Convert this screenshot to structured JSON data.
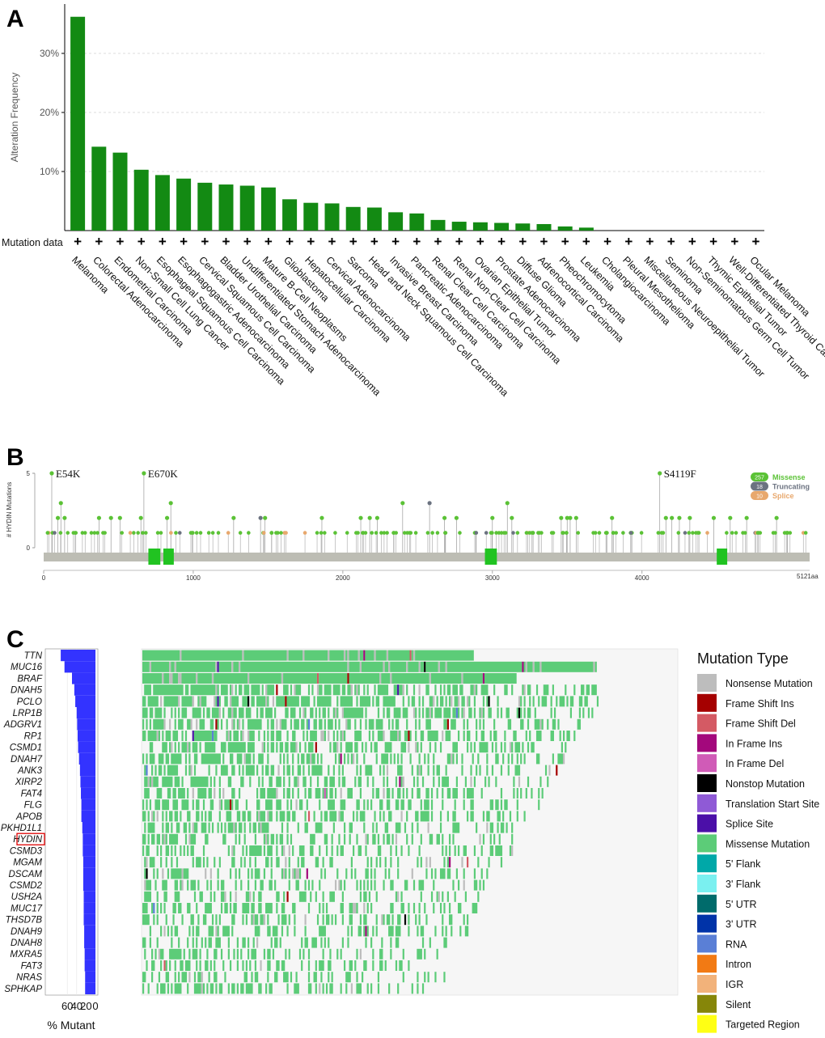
{
  "panels": {
    "a": "A",
    "b": "B",
    "c": "C"
  },
  "chart_data": [
    {
      "type": "bar",
      "panel": "A",
      "title": "",
      "xlabel": "",
      "ylabel": "Alteration Frequency",
      "ylim": [
        0,
        38
      ],
      "yticks": [
        10,
        20,
        30
      ],
      "ytick_labels": [
        "10%",
        "20%",
        "30%"
      ],
      "row_label": "Mutation data",
      "row_symbol": "+",
      "bar_color": "#138a13",
      "categories": [
        "Melanoma",
        "Colorectal Adenocarcinoma",
        "Endometrial Carcinoma",
        "Non-Small Cell Lung Cancer",
        "Esophageal Squamous Cell Carcinoma",
        "Esophagogastric Adenocarcinoma",
        "Cervical Squamous Cell Carcinoma",
        "Bladder Urothelial Carcinoma",
        "Undifferentiated Stomach Adenocarcinoma",
        "Mature B-Cell Neoplasms",
        "Glioblastoma",
        "Hepatocellular Carcinoma",
        "Cervical Adenocarcinoma",
        "Sarcoma",
        "Head and Neck Squamous Cell Carcinoma",
        "Invasive Breast Carcinoma",
        "Pancreatic Adenocarcinoma",
        "Renal Clear Cell Carcinoma",
        "Renal Non-Clear Cell Carcinoma",
        "Ovarian Epithelial Tumor",
        "Prostate Adenocarcinoma",
        "Diffuse Glioma",
        "Adrenocortical Carcinoma",
        "Pheochromocytoma",
        "Leukemia",
        "Cholangiocarcinoma",
        "Pleural Mesothelioma",
        "Miscellaneous Neuroepithelial Tumor",
        "Seminoma",
        "Non-Seminomatous Germ Cell Tumor",
        "Thymic Epithelial Tumor",
        "Well-Differentiated Thyroid Cancer",
        "Ocular Melanoma"
      ],
      "values": [
        36.2,
        14.2,
        13.2,
        10.3,
        9.4,
        8.8,
        8.1,
        7.8,
        7.6,
        7.3,
        5.3,
        4.7,
        4.6,
        4.0,
        3.9,
        3.1,
        2.9,
        1.8,
        1.5,
        1.4,
        1.3,
        1.2,
        1.1,
        0.7,
        0.5,
        0,
        0,
        0,
        0,
        0,
        0,
        0,
        0
      ]
    },
    {
      "type": "scatter",
      "panel": "B",
      "subtype": "lollipop",
      "ylabel": "# HYDIN Mutations",
      "ylim": [
        0,
        5
      ],
      "yticks": [
        0,
        5
      ],
      "xlim": [
        0,
        5121
      ],
      "xticks": [
        0,
        1000,
        2000,
        3000,
        4000
      ],
      "x_end_label": "5121aa",
      "annotations": [
        {
          "label": "E54K",
          "x": 54,
          "y": 5
        },
        {
          "label": "E670K",
          "x": 670,
          "y": 5
        },
        {
          "label": "S4119F",
          "x": 4119,
          "y": 5
        }
      ],
      "domains": [
        [
          700,
          780
        ],
        [
          800,
          870
        ],
        [
          2950,
          3030
        ],
        [
          4500,
          4570
        ]
      ],
      "legend": [
        {
          "name": "Missense",
          "count": "257",
          "color": "#5bc236"
        },
        {
          "name": "Truncating",
          "count": "18",
          "color": "#6b7280"
        },
        {
          "name": "Splice",
          "count": "10",
          "color": "#e8a86d"
        }
      ],
      "points": [
        {
          "x": 54,
          "y": 5,
          "t": "m"
        },
        {
          "x": 95,
          "y": 2,
          "t": "m"
        },
        {
          "x": 115,
          "y": 3,
          "t": "m"
        },
        {
          "x": 140,
          "y": 2,
          "t": "m"
        },
        {
          "x": 370,
          "y": 2,
          "t": "m"
        },
        {
          "x": 450,
          "y": 2,
          "t": "m"
        },
        {
          "x": 510,
          "y": 2,
          "t": "m"
        },
        {
          "x": 650,
          "y": 2,
          "t": "m"
        },
        {
          "x": 670,
          "y": 5,
          "t": "m"
        },
        {
          "x": 825,
          "y": 2,
          "t": "m"
        },
        {
          "x": 850,
          "y": 3,
          "t": "m"
        },
        {
          "x": 1270,
          "y": 2,
          "t": "m"
        },
        {
          "x": 1450,
          "y": 2,
          "t": "t"
        },
        {
          "x": 1480,
          "y": 2,
          "t": "m"
        },
        {
          "x": 1860,
          "y": 2,
          "t": "m"
        },
        {
          "x": 2120,
          "y": 2,
          "t": "m"
        },
        {
          "x": 2180,
          "y": 2,
          "t": "m"
        },
        {
          "x": 2230,
          "y": 2,
          "t": "m"
        },
        {
          "x": 2400,
          "y": 3,
          "t": "m"
        },
        {
          "x": 2580,
          "y": 3,
          "t": "t"
        },
        {
          "x": 2680,
          "y": 2,
          "t": "m"
        },
        {
          "x": 2760,
          "y": 2,
          "t": "m"
        },
        {
          "x": 3000,
          "y": 2,
          "t": "m"
        },
        {
          "x": 3100,
          "y": 3,
          "t": "m"
        },
        {
          "x": 3130,
          "y": 2,
          "t": "m"
        },
        {
          "x": 3460,
          "y": 2,
          "t": "m"
        },
        {
          "x": 3500,
          "y": 2,
          "t": "m"
        },
        {
          "x": 3520,
          "y": 2,
          "t": "m"
        },
        {
          "x": 3560,
          "y": 2,
          "t": "m"
        },
        {
          "x": 3800,
          "y": 2,
          "t": "m"
        },
        {
          "x": 4119,
          "y": 5,
          "t": "m"
        },
        {
          "x": 4160,
          "y": 2,
          "t": "m"
        },
        {
          "x": 4200,
          "y": 2,
          "t": "m"
        },
        {
          "x": 4250,
          "y": 2,
          "t": "m"
        },
        {
          "x": 4320,
          "y": 2,
          "t": "m"
        },
        {
          "x": 4480,
          "y": 2,
          "t": "m"
        },
        {
          "x": 4590,
          "y": 2,
          "t": "m"
        },
        {
          "x": 4700,
          "y": 2,
          "t": "m"
        },
        {
          "x": 4900,
          "y": 2,
          "t": "m"
        }
      ]
    },
    {
      "type": "heatmap",
      "panel": "C",
      "title": "",
      "xlabel": "% Mutant",
      "bar_color": "#3333ff",
      "bar_axis_ticks": [
        "60",
        "40",
        "20",
        "0"
      ],
      "highlighted_gene": "HYDIN",
      "genes": [
        "TTN",
        "MUC16",
        "BRAF",
        "DNAH5",
        "PCLO",
        "LRP1B",
        "ADGRV1",
        "RP1",
        "CSMD1",
        "DNAH7",
        "ANK3",
        "XIRP2",
        "FAT4",
        "FLG",
        "APOB",
        "PKHD1L1",
        "HYDIN",
        "CSMD3",
        "MGAM",
        "DSCAM",
        "CSMD2",
        "USH2A",
        "MUC17",
        "THSD7B",
        "DNAH9",
        "DNAH8",
        "MXRA5",
        "FAT3",
        "NRAS",
        "SPHKAP"
      ],
      "percent_mutant": [
        74,
        66,
        50,
        45,
        43,
        40,
        39,
        38,
        37,
        35,
        33,
        32,
        31,
        30,
        30,
        28,
        27,
        27,
        26,
        26,
        26,
        25,
        25,
        25,
        24,
        24,
        23,
        23,
        22,
        22
      ],
      "legend_title": "Mutation Type",
      "legend": [
        {
          "name": "Nonsense Mutation",
          "color": "#bdbdbd"
        },
        {
          "name": "Frame Shift Ins",
          "color": "#a50000"
        },
        {
          "name": "Frame Shift Del",
          "color": "#d45a64"
        },
        {
          "name": "In Frame Ins",
          "color": "#a3087c"
        },
        {
          "name": "In Frame Del",
          "color": "#d05bb7"
        },
        {
          "name": "Nonstop Mutation",
          "color": "#000000"
        },
        {
          "name": "Translation Start Site",
          "color": "#8f5ad6"
        },
        {
          "name": "Splice Site",
          "color": "#4b0fa8"
        },
        {
          "name": "Missense Mutation",
          "color": "#5ccc78"
        },
        {
          "name": "5' Flank",
          "color": "#00a8a8"
        },
        {
          "name": "3' Flank",
          "color": "#7af0f0"
        },
        {
          "name": "5' UTR",
          "color": "#006b6b"
        },
        {
          "name": "3' UTR",
          "color": "#0033a8"
        },
        {
          "name": "RNA",
          "color": "#5a7fd6"
        },
        {
          "name": "Intron",
          "color": "#f27a14"
        },
        {
          "name": "IGR",
          "color": "#f2b27a"
        },
        {
          "name": "Silent",
          "color": "#868609"
        },
        {
          "name": "Targeted Region",
          "color": "#ffff14"
        }
      ]
    }
  ]
}
